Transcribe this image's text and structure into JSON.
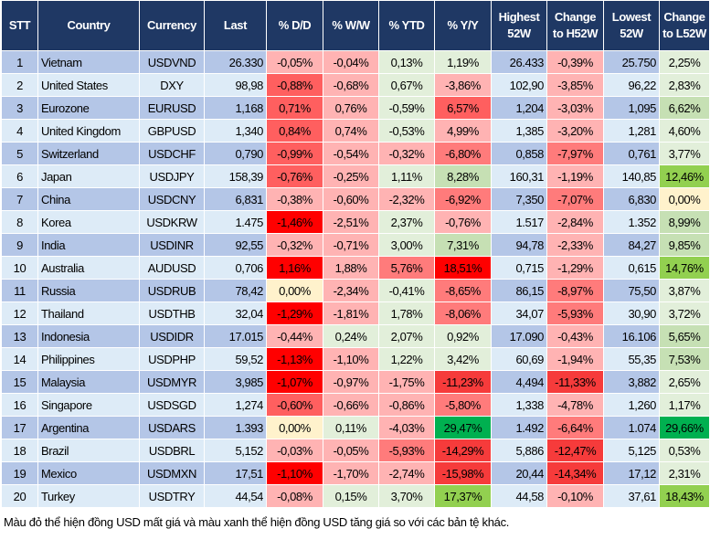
{
  "palette": {
    "a": "#ffb3b3",
    "b": "#ff7b7b",
    "c": "#ff5f5f",
    "d": "#ff0000",
    "e": "#f63b3b",
    "G1": "#e2efda",
    "G2": "#c6e0b4",
    "G3": "#92d050",
    "G4": "#00b050",
    "Y": "#fff2cc"
  },
  "header_bg": "#1f3864",
  "row_bg_odd": "#b4c6e7",
  "row_bg_even": "#ddebf7",
  "columns": [
    "STT",
    "Country",
    "Currency",
    "Last",
    "% D/D",
    "% W/W",
    "% YTD",
    "% Y/Y",
    "Highest 52W",
    "Change to H52W",
    "Lowest 52W",
    "Change to L52W"
  ],
  "rows": [
    {
      "stt": "1",
      "country": "Vietnam",
      "currency": "USDVND",
      "last": "26.330",
      "dd": "-0,05%",
      "ww": "-0,04%",
      "ytd": "0,13%",
      "yy": "1,19%",
      "high": "26.433",
      "h52": "-0,39%",
      "low": "25.750",
      "l52": "2,25%",
      "colors": [
        "a",
        "a",
        "G1",
        "G1",
        "a",
        "G1"
      ]
    },
    {
      "stt": "2",
      "country": "United States",
      "currency": "DXY",
      "last": "98,98",
      "dd": "-0,88%",
      "ww": "-0,68%",
      "ytd": "0,67%",
      "yy": "-3,86%",
      "high": "102,90",
      "h52": "-3,85%",
      "low": "96,22",
      "l52": "2,83%",
      "colors": [
        "c",
        "a",
        "G1",
        "a",
        "a",
        "G1"
      ]
    },
    {
      "stt": "3",
      "country": "Eurozone",
      "currency": "EURUSD",
      "last": "1,168",
      "dd": "0,71%",
      "ww": "0,76%",
      "ytd": "-0,59%",
      "yy": "6,57%",
      "high": "1,204",
      "h52": "-3,03%",
      "low": "1,095",
      "l52": "6,62%",
      "colors": [
        "c",
        "a",
        "G1",
        "c",
        "a",
        "G2"
      ]
    },
    {
      "stt": "4",
      "country": "United Kingdom",
      "currency": "GBPUSD",
      "last": "1,340",
      "dd": "0,84%",
      "ww": "0,74%",
      "ytd": "-0,53%",
      "yy": "4,99%",
      "high": "1,385",
      "h52": "-3,20%",
      "low": "1,281",
      "l52": "4,60%",
      "colors": [
        "c",
        "a",
        "G1",
        "a",
        "a",
        "G1"
      ]
    },
    {
      "stt": "5",
      "country": "Switzerland",
      "currency": "USDCHF",
      "last": "0,790",
      "dd": "-0,99%",
      "ww": "-0,54%",
      "ytd": "-0,32%",
      "yy": "-6,80%",
      "high": "0,858",
      "h52": "-7,97%",
      "low": "0,761",
      "l52": "3,77%",
      "colors": [
        "c",
        "a",
        "a",
        "b",
        "b",
        "G1"
      ]
    },
    {
      "stt": "6",
      "country": "Japan",
      "currency": "USDJPY",
      "last": "158,39",
      "dd": "-0,76%",
      "ww": "-0,25%",
      "ytd": "1,11%",
      "yy": "8,28%",
      "high": "160,31",
      "h52": "-1,19%",
      "low": "140,85",
      "l52": "12,46%",
      "colors": [
        "c",
        "a",
        "G1",
        "G2",
        "a",
        "G3"
      ]
    },
    {
      "stt": "7",
      "country": "China",
      "currency": "USDCNY",
      "last": "6,831",
      "dd": "-0,38%",
      "ww": "-0,60%",
      "ytd": "-2,32%",
      "yy": "-6,92%",
      "high": "7,350",
      "h52": "-7,07%",
      "low": "6,830",
      "l52": "0,00%",
      "colors": [
        "a",
        "a",
        "a",
        "b",
        "b",
        "Y"
      ]
    },
    {
      "stt": "8",
      "country": "Korea",
      "currency": "USDKRW",
      "last": "1.475",
      "dd": "-1,46%",
      "ww": "-2,51%",
      "ytd": "2,37%",
      "yy": "-0,76%",
      "high": "1.517",
      "h52": "-2,84%",
      "low": "1.352",
      "l52": "8,99%",
      "colors": [
        "d",
        "a",
        "G1",
        "a",
        "a",
        "G2"
      ]
    },
    {
      "stt": "9",
      "country": "India",
      "currency": "USDINR",
      "last": "92,55",
      "dd": "-0,32%",
      "ww": "-0,71%",
      "ytd": "3,00%",
      "yy": "7,31%",
      "high": "94,78",
      "h52": "-2,33%",
      "low": "84,27",
      "l52": "9,85%",
      "colors": [
        "a",
        "a",
        "G1",
        "G2",
        "a",
        "G2"
      ]
    },
    {
      "stt": "10",
      "country": "Australia",
      "currency": "AUDUSD",
      "last": "0,706",
      "dd": "1,16%",
      "ww": "1,88%",
      "ytd": "5,76%",
      "yy": "18,51%",
      "high": "0,715",
      "h52": "-1,29%",
      "low": "0,615",
      "l52": "14,76%",
      "colors": [
        "d",
        "a",
        "b",
        "d",
        "a",
        "G3"
      ]
    },
    {
      "stt": "11",
      "country": "Russia",
      "currency": "USDRUB",
      "last": "78,42",
      "dd": "0,00%",
      "ww": "-2,34%",
      "ytd": "-0,41%",
      "yy": "-8,65%",
      "high": "86,15",
      "h52": "-8,97%",
      "low": "75,50",
      "l52": "3,87%",
      "colors": [
        "Y",
        "a",
        "G1",
        "b",
        "b",
        "G1"
      ]
    },
    {
      "stt": "12",
      "country": "Thailand",
      "currency": "USDTHB",
      "last": "32,04",
      "dd": "-1,29%",
      "ww": "-1,81%",
      "ytd": "1,78%",
      "yy": "-8,06%",
      "high": "34,07",
      "h52": "-5,93%",
      "low": "30,90",
      "l52": "3,72%",
      "colors": [
        "d",
        "a",
        "G1",
        "b",
        "b",
        "G1"
      ]
    },
    {
      "stt": "13",
      "country": "Indonesia",
      "currency": "USDIDR",
      "last": "17.015",
      "dd": "-0,44%",
      "ww": "0,24%",
      "ytd": "2,07%",
      "yy": "0,92%",
      "high": "17.090",
      "h52": "-0,43%",
      "low": "16.106",
      "l52": "5,65%",
      "colors": [
        "a",
        "G1",
        "G1",
        "G1",
        "a",
        "G2"
      ]
    },
    {
      "stt": "14",
      "country": "Philippines",
      "currency": "USDPHP",
      "last": "59,52",
      "dd": "-1,13%",
      "ww": "-1,10%",
      "ytd": "1,22%",
      "yy": "3,42%",
      "high": "60,69",
      "h52": "-1,94%",
      "low": "55,35",
      "l52": "7,53%",
      "colors": [
        "d",
        "a",
        "G1",
        "G1",
        "a",
        "G2"
      ]
    },
    {
      "stt": "15",
      "country": "Malaysia",
      "currency": "USDMYR",
      "last": "3,985",
      "dd": "-1,07%",
      "ww": "-0,97%",
      "ytd": "-1,75%",
      "yy": "-11,23%",
      "high": "4,494",
      "h52": "-11,33%",
      "low": "3,882",
      "l52": "2,65%",
      "colors": [
        "d",
        "a",
        "a",
        "e",
        "e",
        "G1"
      ]
    },
    {
      "stt": "16",
      "country": "Singapore",
      "currency": "USDSGD",
      "last": "1,274",
      "dd": "-0,60%",
      "ww": "-0,66%",
      "ytd": "-0,86%",
      "yy": "-5,80%",
      "high": "1,338",
      "h52": "-4,78%",
      "low": "1,260",
      "l52": "1,17%",
      "colors": [
        "c",
        "a",
        "a",
        "b",
        "a",
        "G1"
      ]
    },
    {
      "stt": "17",
      "country": "Argentina",
      "currency": "USDARS",
      "last": "1.393",
      "dd": "0,00%",
      "ww": "0,11%",
      "ytd": "-4,03%",
      "yy": "29,47%",
      "high": "1.492",
      "h52": "-6,64%",
      "low": "1.074",
      "l52": "29,66%",
      "colors": [
        "Y",
        "G1",
        "a",
        "G4",
        "b",
        "G4"
      ]
    },
    {
      "stt": "18",
      "country": "Brazil",
      "currency": "USDBRL",
      "last": "5,152",
      "dd": "-0,03%",
      "ww": "-0,05%",
      "ytd": "-5,93%",
      "yy": "-14,29%",
      "high": "5,886",
      "h52": "-12,47%",
      "low": "5,125",
      "l52": "0,53%",
      "colors": [
        "a",
        "a",
        "b",
        "e",
        "e",
        "G1"
      ]
    },
    {
      "stt": "19",
      "country": "Mexico",
      "currency": "USDMXN",
      "last": "17,51",
      "dd": "-1,10%",
      "ww": "-1,70%",
      "ytd": "-2,74%",
      "yy": "-15,98%",
      "high": "20,44",
      "h52": "-14,34%",
      "low": "17,12",
      "l52": "2,31%",
      "colors": [
        "d",
        "a",
        "a",
        "e",
        "e",
        "G1"
      ]
    },
    {
      "stt": "20",
      "country": "Turkey",
      "currency": "USDTRY",
      "last": "44,54",
      "dd": "-0,08%",
      "ww": "0,15%",
      "ytd": "3,70%",
      "yy": "17,37%",
      "high": "44,58",
      "h52": "-0,10%",
      "low": "37,61",
      "l52": "18,43%",
      "colors": [
        "a",
        "G1",
        "G1",
        "G3",
        "a",
        "G3"
      ]
    }
  ],
  "footer": "Màu đỏ thể hiện đồng USD mất giá và màu xanh thể hiện đồng USD tăng giá so với các bản tệ khác."
}
